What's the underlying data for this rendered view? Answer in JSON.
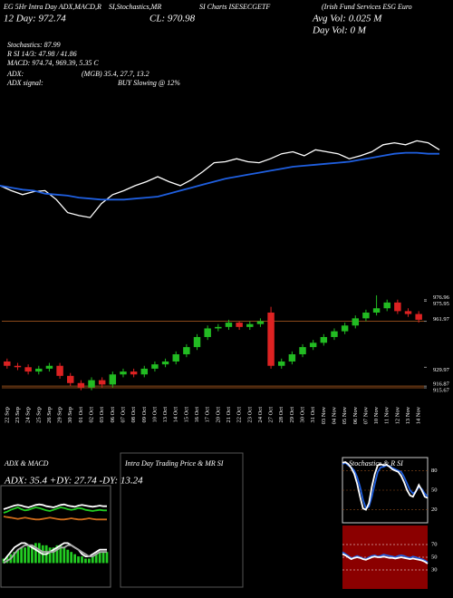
{
  "header": {
    "line1": [
      "EG 5Hr Intra Day ADX,MACD,R",
      "SI,Stochastics,MR",
      "SI Charts ISESECGETF",
      "(Irish Fund Services ESG Euro"
    ],
    "day": "12 Day: 972.74",
    "close": "CL: 970.98",
    "avg_vol": "Avg Vol: 0.025 M",
    "day_vol": "Day Vol: 0  M",
    "stochastics": "Stochastics: 87.99",
    "rsi": "R SI 14/3: 47.98 / 41.86",
    "macd": "MACD: 974.74, 969.39, 5.35 C",
    "adx_label": "ADX:",
    "adx_values": "(MGB) 35.4, 27.7, 13.2",
    "adx_signal_label": "ADX  signal:",
    "adx_signal": "BUY Slowing @ 12%"
  },
  "chart_data": [
    {
      "type": "line",
      "ylim": [
        0,
        100
      ],
      "series": [
        {
          "color": "#ffffff",
          "values": [
            41,
            36,
            32,
            35,
            36,
            27,
            14,
            11,
            9,
            23,
            32,
            36,
            41,
            45,
            50,
            45,
            41,
            47,
            55,
            64,
            65,
            68,
            65,
            64,
            68,
            73,
            75,
            71,
            77,
            75,
            73,
            68,
            71,
            75,
            82,
            84,
            82,
            86,
            84,
            77
          ]
        },
        {
          "color": "#1f5fe0",
          "values": [
            41,
            39,
            37,
            36,
            33,
            32,
            31,
            29,
            28,
            27,
            27,
            27,
            28,
            29,
            30,
            33,
            36,
            39,
            42,
            45,
            48,
            50,
            52,
            54,
            56,
            58,
            60,
            61,
            62,
            63,
            64,
            65,
            67,
            69,
            71,
            73,
            74,
            74,
            73,
            73
          ]
        }
      ]
    },
    {
      "type": "candlestick",
      "ylim": [
        905,
        985
      ],
      "yticks": [
        976.96,
        975.95,
        961.97,
        929.97,
        916.87,
        915.67
      ],
      "level_lines": [
        961.97,
        916.87,
        915.67
      ],
      "up_color": "#22bb22",
      "down_color": "#dd2222",
      "level_color": "#8b4a1a",
      "categories": [
        "22 Sep",
        "23 Sep",
        "24 Sep",
        "25 Sep",
        "26 Sep",
        "29 Sep",
        "30 Sep",
        "01 Oct",
        "02 Oct",
        "03 Oct",
        "06 Oct",
        "07 Oct",
        "08 Oct",
        "09 Oct",
        "10 Oct",
        "13 Oct",
        "14 Oct",
        "15 Oct",
        "16 Oct",
        "17 Oct",
        "20 Oct",
        "21 Oct",
        "22 Oct",
        "23 Oct",
        "24 Oct",
        "27 Oct",
        "28 Oct",
        "29 Oct",
        "30 Oct",
        "31 Oct",
        "03 Nov",
        "04 Nov",
        "05 Nov",
        "06 Nov",
        "07 Nov",
        "10 Nov",
        "11 Nov",
        "12 Nov",
        "13 Nov",
        "14 Nov"
      ],
      "open": [
        934,
        931,
        930,
        927,
        929,
        931,
        924,
        919,
        916,
        921,
        918,
        925,
        927,
        925,
        929,
        932,
        934,
        939,
        944,
        951,
        957,
        958,
        961,
        958,
        960,
        968,
        931,
        934,
        939,
        944,
        947,
        951,
        955,
        959,
        964,
        968,
        971,
        975,
        969,
        967
      ],
      "high": [
        936,
        933,
        932,
        931,
        933,
        933,
        926,
        921,
        923,
        923,
        927,
        929,
        929,
        931,
        934,
        936,
        941,
        946,
        953,
        959,
        960,
        963,
        962,
        962,
        964,
        972,
        936,
        941,
        946,
        949,
        953,
        957,
        961,
        966,
        970,
        980,
        977,
        977,
        971,
        969
      ],
      "low": [
        929,
        928,
        925,
        925,
        927,
        922,
        917,
        914,
        914,
        916,
        916,
        923,
        923,
        923,
        927,
        930,
        932,
        937,
        942,
        949,
        955,
        956,
        956,
        956,
        958,
        929,
        929,
        932,
        937,
        942,
        945,
        949,
        953,
        957,
        962,
        966,
        969,
        967,
        965,
        961
      ],
      "close": [
        931,
        930,
        927,
        929,
        931,
        924,
        919,
        916,
        921,
        918,
        925,
        927,
        925,
        929,
        932,
        934,
        939,
        944,
        951,
        957,
        958,
        961,
        958,
        960,
        962,
        931,
        934,
        939,
        944,
        947,
        951,
        955,
        959,
        964,
        968,
        971,
        975,
        969,
        967,
        963
      ]
    },
    {
      "type": "line",
      "title": "ADX  & MACD",
      "subtitle": "ADX: 35.4  +DY: 27.74  -DY: 13.24",
      "ylim": [
        0,
        60
      ],
      "series": [
        {
          "color": "#ffffff",
          "values": [
            30,
            32,
            34,
            36,
            37,
            36,
            34,
            33,
            35,
            37,
            38,
            37,
            35,
            34,
            33,
            35,
            37,
            38,
            36,
            35,
            34,
            36,
            37,
            36,
            35,
            34,
            35,
            36,
            35,
            35
          ]
        },
        {
          "color": "#22cc22",
          "values": [
            24,
            26,
            29,
            31,
            33,
            30,
            28,
            29,
            31,
            33,
            32,
            30,
            28,
            27,
            29,
            31,
            33,
            32,
            30,
            29,
            30,
            32,
            31,
            29,
            28,
            27,
            28,
            29,
            28,
            28
          ]
        },
        {
          "color": "#cc6a1a",
          "values": [
            18,
            17,
            16,
            15,
            14,
            15,
            16,
            15,
            14,
            13,
            13,
            14,
            15,
            16,
            15,
            14,
            13,
            13,
            14,
            15,
            14,
            13,
            13,
            14,
            15,
            14,
            13,
            13,
            13,
            13
          ]
        }
      ]
    },
    {
      "type": "line",
      "ylim": [
        -10,
        12
      ],
      "series": [
        {
          "color": "#22cc22",
          "kind": "bar",
          "values": [
            2,
            3,
            4,
            5,
            6,
            7,
            7,
            8,
            8,
            9,
            9,
            8,
            8,
            7,
            7,
            8,
            8,
            7,
            6,
            5,
            4,
            3,
            3,
            2,
            2,
            3,
            4,
            5,
            5,
            5
          ]
        },
        {
          "color": "#ffffff",
          "values": [
            1,
            3,
            5,
            7,
            8,
            9,
            9,
            8,
            7,
            6,
            5,
            4,
            4,
            5,
            6,
            7,
            8,
            9,
            9,
            8,
            7,
            6,
            4,
            3,
            3,
            4,
            5,
            6,
            6,
            6
          ]
        },
        {
          "color": "#aaaaaa",
          "values": [
            0,
            1,
            2,
            4,
            6,
            7,
            8,
            8,
            8,
            7,
            6,
            5,
            5,
            5,
            5,
            6,
            7,
            7,
            8,
            8,
            7,
            6,
            5,
            4,
            3,
            3,
            4,
            5,
            5,
            5
          ]
        }
      ]
    },
    {
      "type": "empty",
      "title": "Intra  Day Trading Price  & MR          SI"
    },
    {
      "type": "line",
      "title": "Stochastics  & R          SI",
      "ylim": [
        0,
        100
      ],
      "yticks": [
        20,
        50,
        80
      ],
      "tick_color": "#8b4a1a",
      "series": [
        {
          "color": "#1f5fe0",
          "values": [
            90,
            92,
            88,
            85,
            80,
            70,
            55,
            35,
            22,
            25,
            40,
            60,
            78,
            85,
            86,
            88,
            87,
            84,
            82,
            80,
            78,
            70,
            60,
            50,
            45,
            48,
            55,
            52,
            45,
            40
          ]
        },
        {
          "color": "#ffffff",
          "values": [
            92,
            93,
            90,
            84,
            75,
            60,
            40,
            22,
            20,
            30,
            55,
            75,
            88,
            90,
            88,
            89,
            86,
            82,
            80,
            78,
            72,
            62,
            50,
            42,
            40,
            48,
            58,
            50,
            40,
            38
          ]
        }
      ]
    },
    {
      "type": "line",
      "ylim": [
        0,
        100
      ],
      "yticks": [
        30,
        50,
        70
      ],
      "tick_color": "#ffffff",
      "background": "#8b0000",
      "series": [
        {
          "color": "#1f5fe0",
          "values": [
            58,
            55,
            52,
            48,
            50,
            52,
            50,
            48,
            47,
            50,
            52,
            53,
            51,
            52,
            54,
            53,
            52,
            51,
            50,
            52,
            53,
            52,
            50,
            49,
            51,
            50,
            48,
            47,
            45,
            42
          ]
        },
        {
          "color": "#ffffff",
          "values": [
            55,
            53,
            50,
            47,
            49,
            50,
            49,
            47,
            46,
            48,
            50,
            51,
            50,
            50,
            51,
            50,
            49,
            49,
            48,
            49,
            50,
            49,
            48,
            47,
            48,
            47,
            46,
            45,
            43,
            40
          ]
        }
      ]
    }
  ]
}
